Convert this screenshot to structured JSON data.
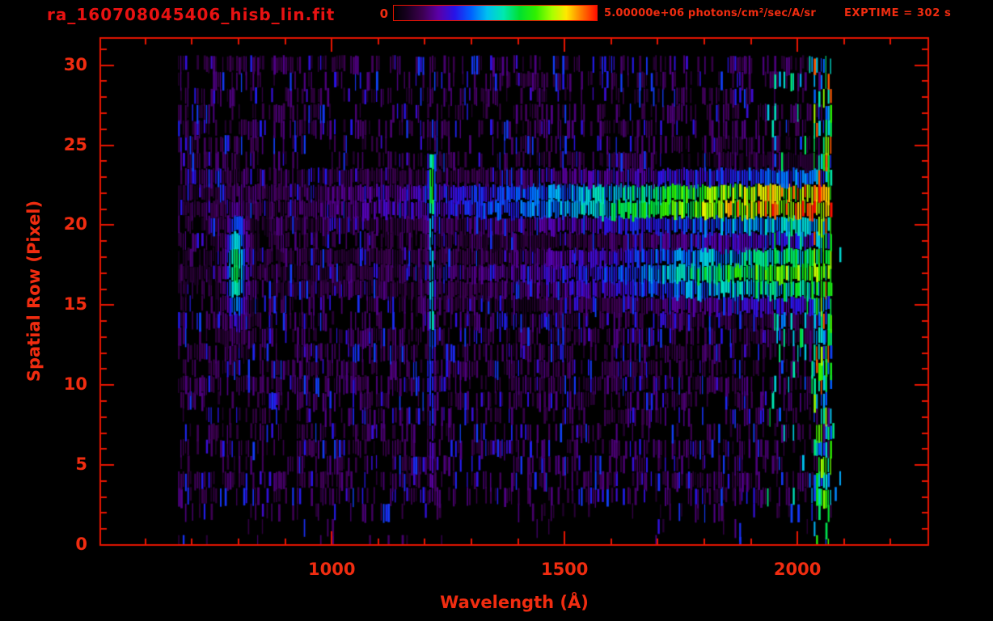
{
  "header": {
    "title": "ra_160708045406_hisb_lin.fit",
    "exptime_label": "EXPTIME = 302 s"
  },
  "colorbar": {
    "min_label": "0",
    "max_label": "5.00000e+06 photons/cm²/sec/A/sr",
    "border_color": "#e81400"
  },
  "chart_data": {
    "type": "heatmap",
    "title": "ra_160708045406_hisb_lin.fit",
    "xlabel": "Wavelength (Å)",
    "ylabel": "Spatial Row (Pixel)",
    "xlim": [
      503,
      2281
    ],
    "ylim": [
      0,
      31.7
    ],
    "x_major_ticks": [
      1000,
      1500,
      2000
    ],
    "x_minor_tick_step": 100,
    "y_major_ticks": [
      0,
      5,
      10,
      15,
      20,
      25,
      30
    ],
    "y_minor_tick_step": 1,
    "grid": false,
    "legend": "none",
    "colorbar_range": [
      0,
      5000000
    ],
    "colorbar_units": "photons/cm2/sec/A/sr",
    "exposure_time_s": 302,
    "background": "#000000",
    "axis_color": "#e81400",
    "label_color": "#f02c10",
    "title_color": "#e81212",
    "seed": 160708,
    "data_extent": {
      "wavelength": [
        670,
        2072
      ],
      "rows": [
        0,
        30
      ],
      "bin_width": 5
    },
    "colormap": [
      [
        0.0,
        "#000000"
      ],
      [
        0.06,
        "#16001e"
      ],
      [
        0.14,
        "#3c0050"
      ],
      [
        0.22,
        "#5b00a8"
      ],
      [
        0.3,
        "#2714e8"
      ],
      [
        0.38,
        "#0060ff"
      ],
      [
        0.46,
        "#00c0f0"
      ],
      [
        0.54,
        "#00e8b0"
      ],
      [
        0.62,
        "#00e030"
      ],
      [
        0.7,
        "#30f000"
      ],
      [
        0.78,
        "#a8ff00"
      ],
      [
        0.85,
        "#ffe800"
      ],
      [
        0.92,
        "#ff8000"
      ],
      [
        1.0,
        "#ff1000"
      ]
    ],
    "noise": {
      "row_density": [
        [
          0,
          2,
          0.05
        ],
        [
          2,
          3,
          0.28
        ],
        [
          3,
          10,
          0.48
        ],
        [
          10,
          24,
          0.62
        ],
        [
          24,
          31,
          0.48
        ]
      ],
      "purple_level": [
        0.08,
        0.19
      ],
      "blue_prob": 0.2,
      "blue_level": [
        0.26,
        0.35
      ],
      "right_boost_wavelength": 1930,
      "right_boost_prob": 0.3,
      "right_boost_level": [
        0.33,
        0.62
      ],
      "post_edge_speck_prob": 0.05
    },
    "features": [
      {
        "name": "airglow-emission-blob",
        "type": "gaussian2d",
        "wavelength": 793,
        "sigma_w": 16,
        "row": 17.3,
        "sigma_r": 2.6,
        "amplitude": 0.62
      },
      {
        "name": "airglow-blob-halo",
        "type": "gaussian2d",
        "wavelength": 795,
        "sigma_w": 27,
        "row": 17.5,
        "sigma_r": 3.6,
        "amplitude": 0.32
      },
      {
        "name": "lyman-alpha-airglow-line",
        "type": "vline",
        "wavelength": 1213,
        "sigma_w": 6,
        "row_segments": [
          [
            2.5,
            8,
            0.26
          ],
          [
            8,
            14,
            0.36
          ],
          [
            14,
            20.5,
            0.5
          ],
          [
            20.5,
            24.5,
            0.66
          ]
        ]
      },
      {
        "name": "upper-spectral-trace",
        "type": "band",
        "row": 21.4,
        "sigma_r": 1.15,
        "red_speck_prob": 0.06,
        "amp_points": [
          [
            700,
            0.1
          ],
          [
            1000,
            0.18
          ],
          [
            1250,
            0.28
          ],
          [
            1450,
            0.4
          ],
          [
            1650,
            0.58
          ],
          [
            1800,
            0.74
          ],
          [
            1900,
            0.86
          ],
          [
            1980,
            0.92
          ],
          [
            2062,
            0.95
          ]
        ]
      },
      {
        "name": "lower-spectral-trace",
        "type": "band",
        "row": 17.0,
        "sigma_r": 1.45,
        "red_speck_prob": 0.0,
        "amp_points": [
          [
            900,
            0.08
          ],
          [
            1300,
            0.16
          ],
          [
            1600,
            0.32
          ],
          [
            1800,
            0.52
          ],
          [
            1900,
            0.62
          ],
          [
            2062,
            0.7
          ]
        ]
      },
      {
        "name": "detector-edge-strip",
        "type": "edge",
        "wavelength_range": [
          2035,
          2072
        ],
        "base": 0.3,
        "jitter": 0.5,
        "red_speck_prob": 0.08
      },
      {
        "name": "bottom-blue-column",
        "type": "vline-short",
        "wavelength": 1873,
        "rows": [
          0,
          1.6
        ],
        "amplitude": 0.33
      }
    ]
  }
}
